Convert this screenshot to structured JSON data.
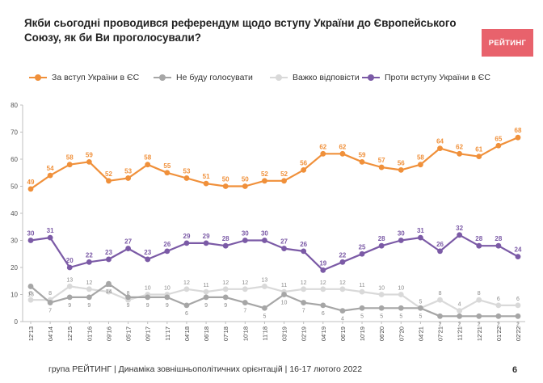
{
  "header": {
    "title": "Якби сьогодні проводився референдум щодо вступу України до Європейського Союзу, як би Ви проголосували?",
    "logo_text": "РЕЙТИНГ"
  },
  "footer": {
    "source": "група РЕЙТИНГ | Динаміка зовнішньополітичних орієнтацій | 16-17 лютого 2022",
    "page_number": "6"
  },
  "chart_data": {
    "type": "line",
    "title": "Якби сьогодні проводився референдум щодо вступу України до Європейського Союзу, як би Ви проголосували?",
    "categories": [
      "12'13",
      "04'14",
      "12'15",
      "01'16",
      "09'16",
      "05'17",
      "09'17",
      "11'17",
      "04'18",
      "06'18",
      "07'18",
      "10'18",
      "11'18",
      "03'19",
      "02'19",
      "04'19",
      "06'19",
      "10'19",
      "06'20",
      "07'20",
      "04'21",
      "07'21",
      "11'21",
      "12'21",
      "01'22",
      "02'22"
    ],
    "ylim": [
      0,
      80
    ],
    "yticks": [
      0,
      10,
      20,
      30,
      40,
      50,
      60,
      70,
      80
    ],
    "grid": false,
    "legend_position": "top",
    "series": [
      {
        "name": "За вступ України в ЄС",
        "color": "#f0903a",
        "label_position": "above",
        "values": [
          49,
          54,
          58,
          59,
          52,
          53,
          58,
          55,
          53,
          51,
          50,
          50,
          52,
          52,
          56,
          62,
          62,
          59,
          57,
          56,
          58,
          64,
          62,
          61,
          65,
          68
        ]
      },
      {
        "name": "Не буду голосувати",
        "color": "#a6a6a6",
        "label_position": "below",
        "values": [
          13,
          7,
          9,
          9,
          14,
          9,
          9,
          9,
          6,
          9,
          9,
          7,
          5,
          10,
          7,
          6,
          4,
          5,
          5,
          5,
          5,
          2,
          2,
          2,
          2,
          2
        ]
      },
      {
        "name": "Важко відповісти",
        "color": "#d9d9d9",
        "label_position": "above",
        "values": [
          8,
          8,
          13,
          12,
          11,
          8,
          10,
          10,
          12,
          11,
          12,
          12,
          13,
          11,
          12,
          12,
          12,
          11,
          10,
          10,
          5,
          8,
          4,
          8,
          6,
          6
        ]
      },
      {
        "name": "Проти вступу України в ЄС",
        "color": "#7b5aa6",
        "label_position": "above",
        "values": [
          30,
          31,
          20,
          22,
          23,
          27,
          23,
          26,
          29,
          29,
          28,
          30,
          30,
          27,
          26,
          19,
          22,
          25,
          28,
          30,
          31,
          26,
          32,
          28,
          28,
          24
        ]
      }
    ]
  }
}
